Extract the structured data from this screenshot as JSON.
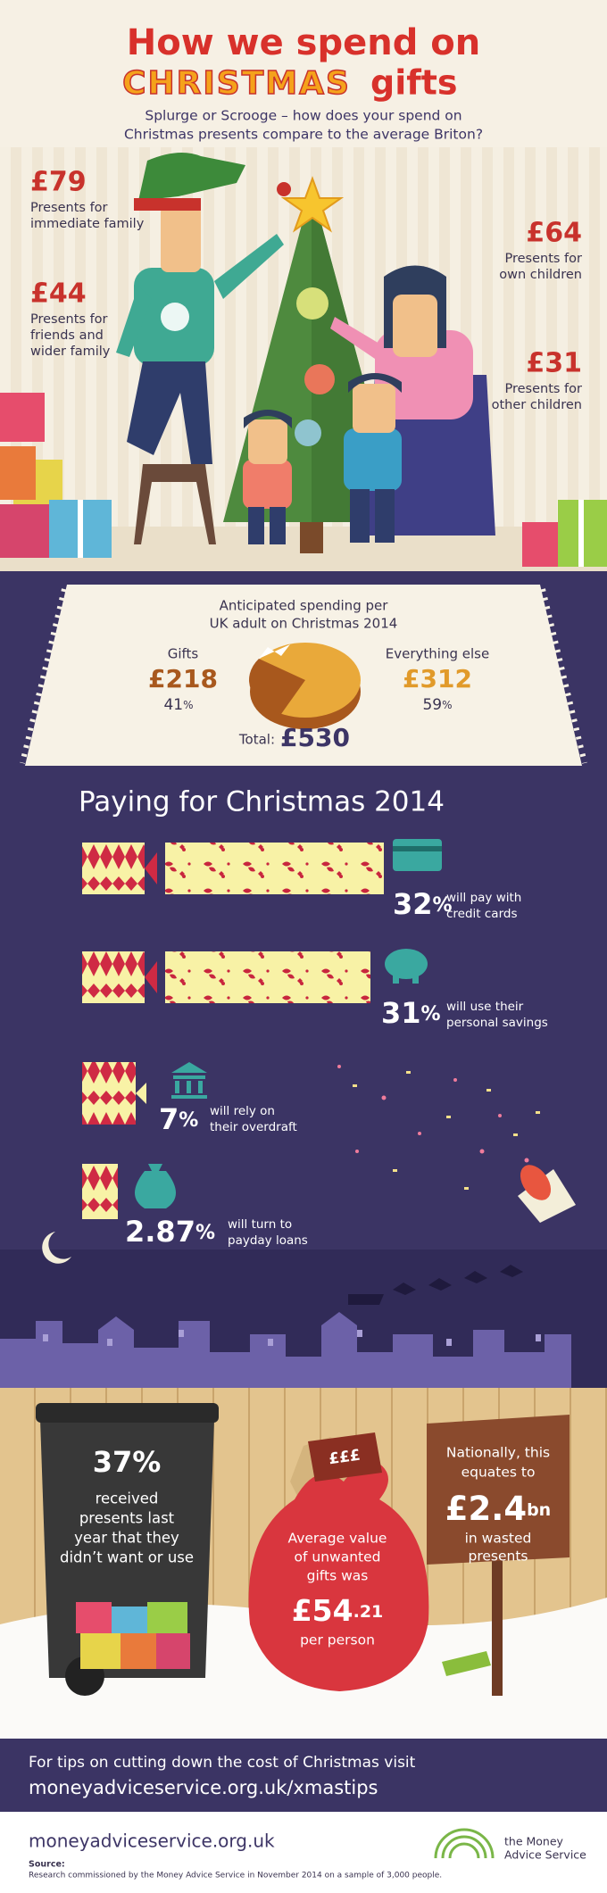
{
  "header": {
    "title_line1": "How we spend on",
    "title_christmas": "CHRISTMAS",
    "title_gifts": "gifts",
    "subtitle": [
      "Splurge or Scrooge – how does your spend on",
      "Christmas presents compare to the average Briton?"
    ]
  },
  "presents": [
    {
      "amount": "£79",
      "label": [
        "Presents for",
        "immediate family"
      ]
    },
    {
      "amount": "£44",
      "label": [
        "Presents for",
        "friends and",
        "wider family"
      ]
    },
    {
      "amount": "£64",
      "label": [
        "Presents for",
        "own children"
      ]
    },
    {
      "amount": "£31",
      "label": [
        "Presents for",
        "other children"
      ]
    }
  ],
  "spending": {
    "heading": [
      "Anticipated spending per",
      "UK adult on Christmas 2014"
    ],
    "gifts": {
      "label": "Gifts",
      "amount": "£218",
      "percent": "41",
      "unit": "%"
    },
    "other": {
      "label": "Everything else",
      "amount": "£312",
      "percent": "59",
      "unit": "%"
    },
    "total": {
      "label": "Total:",
      "amount": "£530"
    }
  },
  "paying": {
    "title": "Paying for Christmas 2014",
    "methods": [
      {
        "value": "32",
        "unit": "%",
        "label": [
          "will pay with",
          "credit cards"
        ]
      },
      {
        "value": "31",
        "unit": "%",
        "label": [
          "will use their",
          "personal savings"
        ]
      },
      {
        "value": "7",
        "unit": "%",
        "label": [
          "will rely on",
          "their overdraft"
        ]
      },
      {
        "value": "2.87",
        "unit": "%",
        "label": [
          "will turn to",
          "payday loans"
        ]
      }
    ]
  },
  "waste": {
    "bin": {
      "value": "37%",
      "text": [
        "received",
        "presents last",
        "year that they",
        "didn’t want or use"
      ]
    },
    "tag": "£££",
    "sack": {
      "text": [
        "Average value",
        "of unwanted",
        "gifts was"
      ],
      "value": "£54",
      "decimals": ".21",
      "per": "per person"
    },
    "sign": {
      "text": [
        "Nationally, this",
        "equates to"
      ],
      "value": "£2.4",
      "unit": "bn",
      "after": [
        "in wasted",
        "presents"
      ]
    }
  },
  "footer": {
    "tips": "For tips on cutting down the cost of Christmas visit",
    "url": "moneyadviceservice.org.uk/xmastips",
    "site": "moneyadviceservice.org.uk",
    "source_label": "Source:",
    "source": "Research commissioned by the Money Advice Service in November 2014 on a sample of 3,000 people.",
    "logo": [
      "the Money",
      "Advice Service"
    ]
  }
}
